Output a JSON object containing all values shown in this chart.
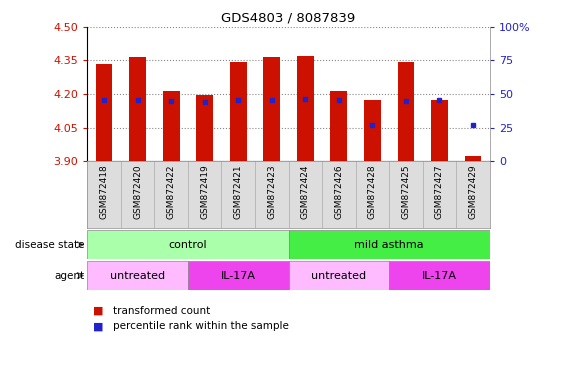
{
  "title": "GDS4803 / 8087839",
  "samples": [
    "GSM872418",
    "GSM872420",
    "GSM872422",
    "GSM872419",
    "GSM872421",
    "GSM872423",
    "GSM872424",
    "GSM872426",
    "GSM872428",
    "GSM872425",
    "GSM872427",
    "GSM872429"
  ],
  "bar_values": [
    4.335,
    4.365,
    4.215,
    4.195,
    4.345,
    4.365,
    4.37,
    4.215,
    4.175,
    4.345,
    4.175,
    3.925
  ],
  "blue_values": [
    4.175,
    4.175,
    4.17,
    4.165,
    4.175,
    4.175,
    4.18,
    4.175,
    4.06,
    4.17,
    4.175,
    4.06
  ],
  "ymin": 3.9,
  "ymax": 4.5,
  "bar_color": "#cc1100",
  "blue_color": "#2222cc",
  "disease_state_groups": [
    {
      "label": "control",
      "start": 0,
      "end": 6,
      "color": "#aaffaa"
    },
    {
      "label": "mild asthma",
      "start": 6,
      "end": 12,
      "color": "#44ee44"
    }
  ],
  "agent_groups": [
    {
      "label": "untreated",
      "start": 0,
      "end": 3,
      "color": "#ffbbff"
    },
    {
      "label": "IL-17A",
      "start": 3,
      "end": 6,
      "color": "#ee44ee"
    },
    {
      "label": "untreated",
      "start": 6,
      "end": 9,
      "color": "#ffbbff"
    },
    {
      "label": "IL-17A",
      "start": 9,
      "end": 12,
      "color": "#ee44ee"
    }
  ],
  "grid_yticks": [
    3.9,
    4.05,
    4.2,
    4.35,
    4.5
  ],
  "right_yticks": [
    0,
    25,
    50,
    75,
    100
  ],
  "right_tick_labels": [
    "0",
    "25",
    "50",
    "75",
    "100%"
  ],
  "legend_items": [
    {
      "label": "transformed count",
      "color": "#cc1100"
    },
    {
      "label": "percentile rank within the sample",
      "color": "#2222cc"
    }
  ]
}
